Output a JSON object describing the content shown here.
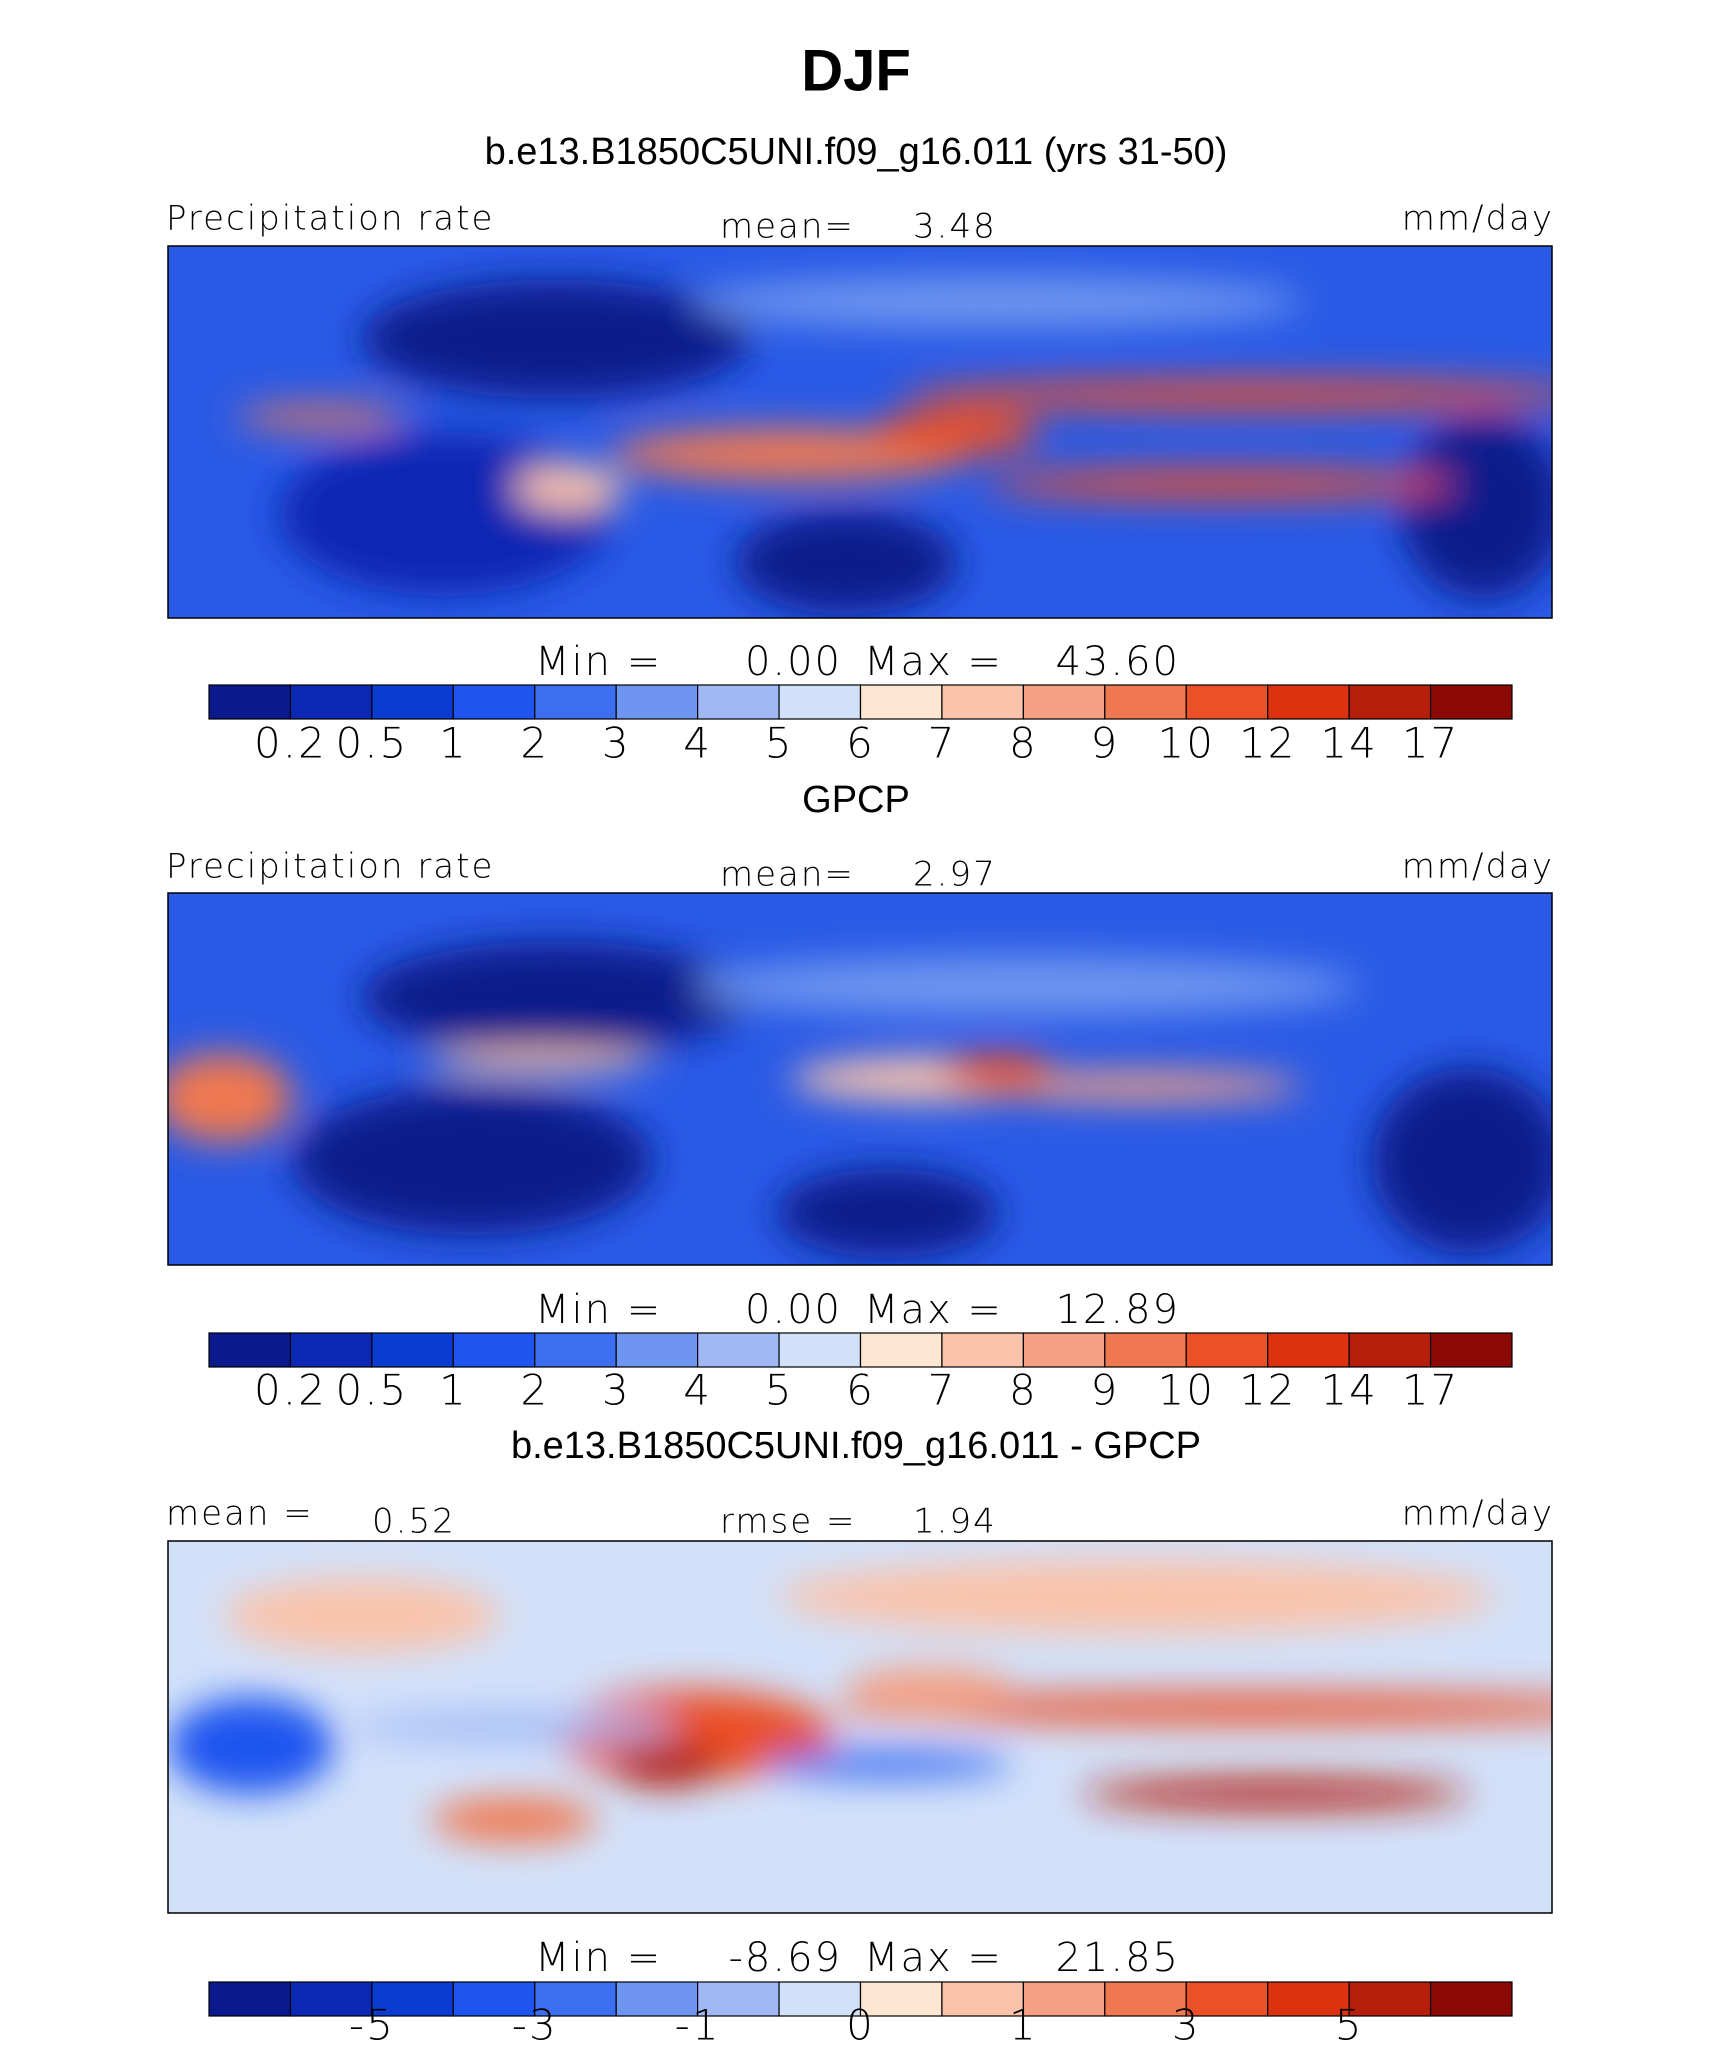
{
  "title": "DJF",
  "panels": [
    {
      "title": "b.e13.B1850C5UNI.f09_g16.011 (yrs 31-50)",
      "left_label": "Precipitation rate",
      "left_value": null,
      "center_label": "mean=",
      "center_value": "3.48",
      "units": "mm/day",
      "min_label": "Min =",
      "min": "0.00",
      "max_label": "Max =",
      "max": "43.60",
      "colors": [
        "#0a1a8c",
        "#0a28b4",
        "#0a3cd2",
        "#1e55f0",
        "#3c6ef0",
        "#6e96f0",
        "#a0b9f5",
        "#d2e1fa",
        "#fde6d2",
        "#fac3aa",
        "#f5a082",
        "#f07850",
        "#eb5028",
        "#dc3210",
        "#b41e0a",
        "#8c0a05"
      ],
      "labels": [
        "0.2",
        "0.5",
        "1",
        "2",
        "3",
        "4",
        "5",
        "6",
        "7",
        "8",
        "9",
        "10",
        "12",
        "14",
        "17"
      ]
    },
    {
      "title": "GPCP",
      "left_label": "Precipitation rate",
      "left_value": null,
      "center_label": "mean=",
      "center_value": "2.97",
      "units": "mm/day",
      "min_label": "Min =",
      "min": "0.00",
      "max_label": "Max =",
      "max": "12.89",
      "colors": [
        "#0a1a8c",
        "#0a28b4",
        "#0a3cd2",
        "#1e55f0",
        "#3c6ef0",
        "#6e96f0",
        "#a0b9f5",
        "#d2e1fa",
        "#fde6d2",
        "#fac3aa",
        "#f5a082",
        "#f07850",
        "#eb5028",
        "#dc3210",
        "#b41e0a",
        "#8c0a05"
      ],
      "labels": [
        "0.2",
        "0.5",
        "1",
        "2",
        "3",
        "4",
        "5",
        "6",
        "7",
        "8",
        "9",
        "10",
        "12",
        "14",
        "17"
      ]
    },
    {
      "title": "b.e13.B1850C5UNI.f09_g16.011 - GPCP",
      "left_label": "mean =",
      "left_value": "0.52",
      "center_label": "rmse =",
      "center_value": "1.94",
      "units": "mm/day",
      "min_label": "Min =",
      "min": "-8.69",
      "max_label": "Max =",
      "max": "21.85",
      "colors": [
        "#0a1a8c",
        "#0a28b4",
        "#0a3cd2",
        "#1e55f0",
        "#3c6ef0",
        "#6e96f0",
        "#a0b9f5",
        "#d2e1fa",
        "#fde6d2",
        "#fac3aa",
        "#f5a082",
        "#f07850",
        "#eb5028",
        "#dc3210",
        "#b41e0a",
        "#8c0a05"
      ],
      "labels": [
        null,
        "-5",
        null,
        "-3",
        null,
        "-1",
        null,
        "0",
        null,
        "1",
        null,
        "3",
        null,
        "5",
        null
      ]
    }
  ]
}
